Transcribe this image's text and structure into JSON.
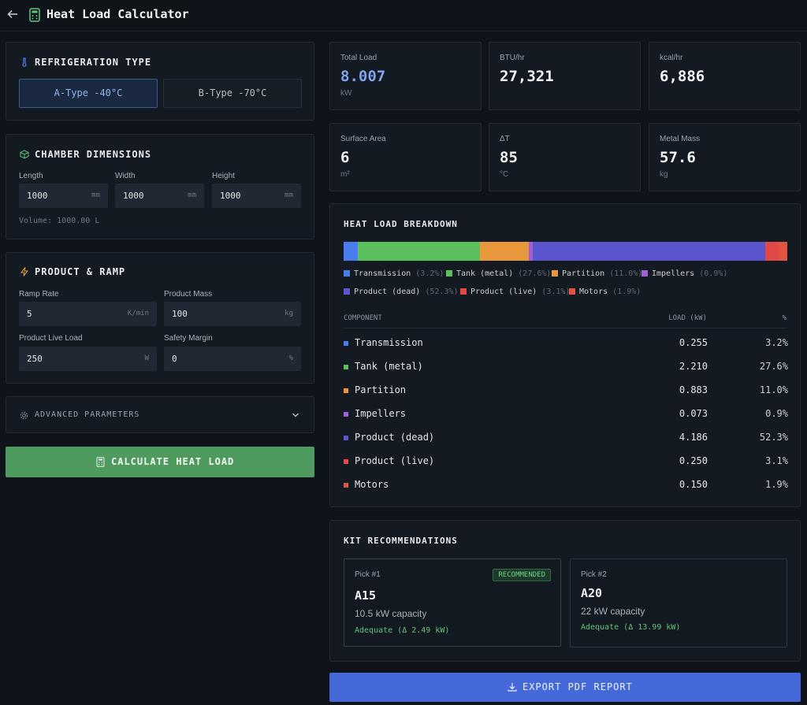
{
  "header": {
    "title": "Heat Load Calculator"
  },
  "refrigeration": {
    "title": "REFRIGERATION TYPE",
    "options": [
      {
        "label": "A-Type -40°C",
        "selected": true
      },
      {
        "label": "B-Type -70°C",
        "selected": false
      }
    ]
  },
  "dimensions": {
    "title": "CHAMBER DIMENSIONS",
    "length": {
      "label": "Length",
      "value": "1000",
      "unit": "mm"
    },
    "width": {
      "label": "Width",
      "value": "1000",
      "unit": "mm"
    },
    "height": {
      "label": "Height",
      "value": "1000",
      "unit": "mm"
    },
    "volume": "Volume: 1000.00 L"
  },
  "product": {
    "title": "PRODUCT & RAMP",
    "ramp_rate": {
      "label": "Ramp Rate",
      "value": "5",
      "unit": "K/min"
    },
    "product_mass": {
      "label": "Product Mass",
      "value": "100",
      "unit": "kg"
    },
    "live_load": {
      "label": "Product Live Load",
      "value": "250",
      "unit": "W"
    },
    "safety_margin": {
      "label": "Safety Margin",
      "value": "0",
      "unit": "%"
    }
  },
  "advanced": {
    "label": "ADVANCED PARAMETERS"
  },
  "calculate": {
    "label": "CALCULATE HEAT LOAD"
  },
  "stats": [
    {
      "title": "Total Load",
      "value": "8.007",
      "unit": "kW"
    },
    {
      "title": "BTU/hr",
      "value": "27,321",
      "unit": ""
    },
    {
      "title": "kcal/hr",
      "value": "6,886",
      "unit": ""
    },
    {
      "title": "Surface Area",
      "value": "6",
      "unit": "m²"
    },
    {
      "title": "ΔT",
      "value": "85",
      "unit": "°C"
    },
    {
      "title": "Metal Mass",
      "value": "57.6",
      "unit": "kg"
    }
  ],
  "breakdown": {
    "title": "HEAT LOAD BREAKDOWN",
    "col_component": "COMPONENT",
    "col_load": "LOAD (kW)",
    "col_pct": "%",
    "items": [
      {
        "name": "Transmission",
        "load": "0.255",
        "pct": "3.2%",
        "pct_value": 3.2,
        "color": "#4a7ef0"
      },
      {
        "name": "Tank (metal)",
        "load": "2.210",
        "pct": "27.6%",
        "pct_value": 27.6,
        "color": "#5cbf5e"
      },
      {
        "name": "Partition",
        "load": "0.883",
        "pct": "11.0%",
        "pct_value": 11.0,
        "color": "#e8973a"
      },
      {
        "name": "Impellers",
        "load": "0.073",
        "pct": "0.9%",
        "pct_value": 0.9,
        "color": "#9f5fd8"
      },
      {
        "name": "Product (dead)",
        "load": "4.186",
        "pct": "52.3%",
        "pct_value": 52.3,
        "color": "#5a55cc"
      },
      {
        "name": "Product (live)",
        "load": "0.250",
        "pct": "3.1%",
        "pct_value": 3.1,
        "color": "#e24848"
      },
      {
        "name": "Motors",
        "load": "0.150",
        "pct": "1.9%",
        "pct_value": 1.9,
        "color": "#e0533f"
      }
    ],
    "legend_pcts": [
      "(3.2%)",
      "(27.6%)",
      "(11.0%)",
      "(0.9%)",
      "(52.3%)",
      "(3.1%)",
      "(1.9%)"
    ]
  },
  "kits": {
    "title": "KIT RECOMMENDATIONS",
    "picks": [
      {
        "pick": "Pick #1",
        "badge": "RECOMMENDED",
        "name": "A15",
        "capacity": "10.5 kW capacity",
        "status": "Adequate (Δ 2.49 kW)"
      },
      {
        "pick": "Pick #2",
        "name": "A20",
        "capacity": "22 kW capacity",
        "status": "Adequate (Δ 13.99 kW)"
      }
    ]
  },
  "export": {
    "label": "EXPORT PDF REPORT"
  }
}
